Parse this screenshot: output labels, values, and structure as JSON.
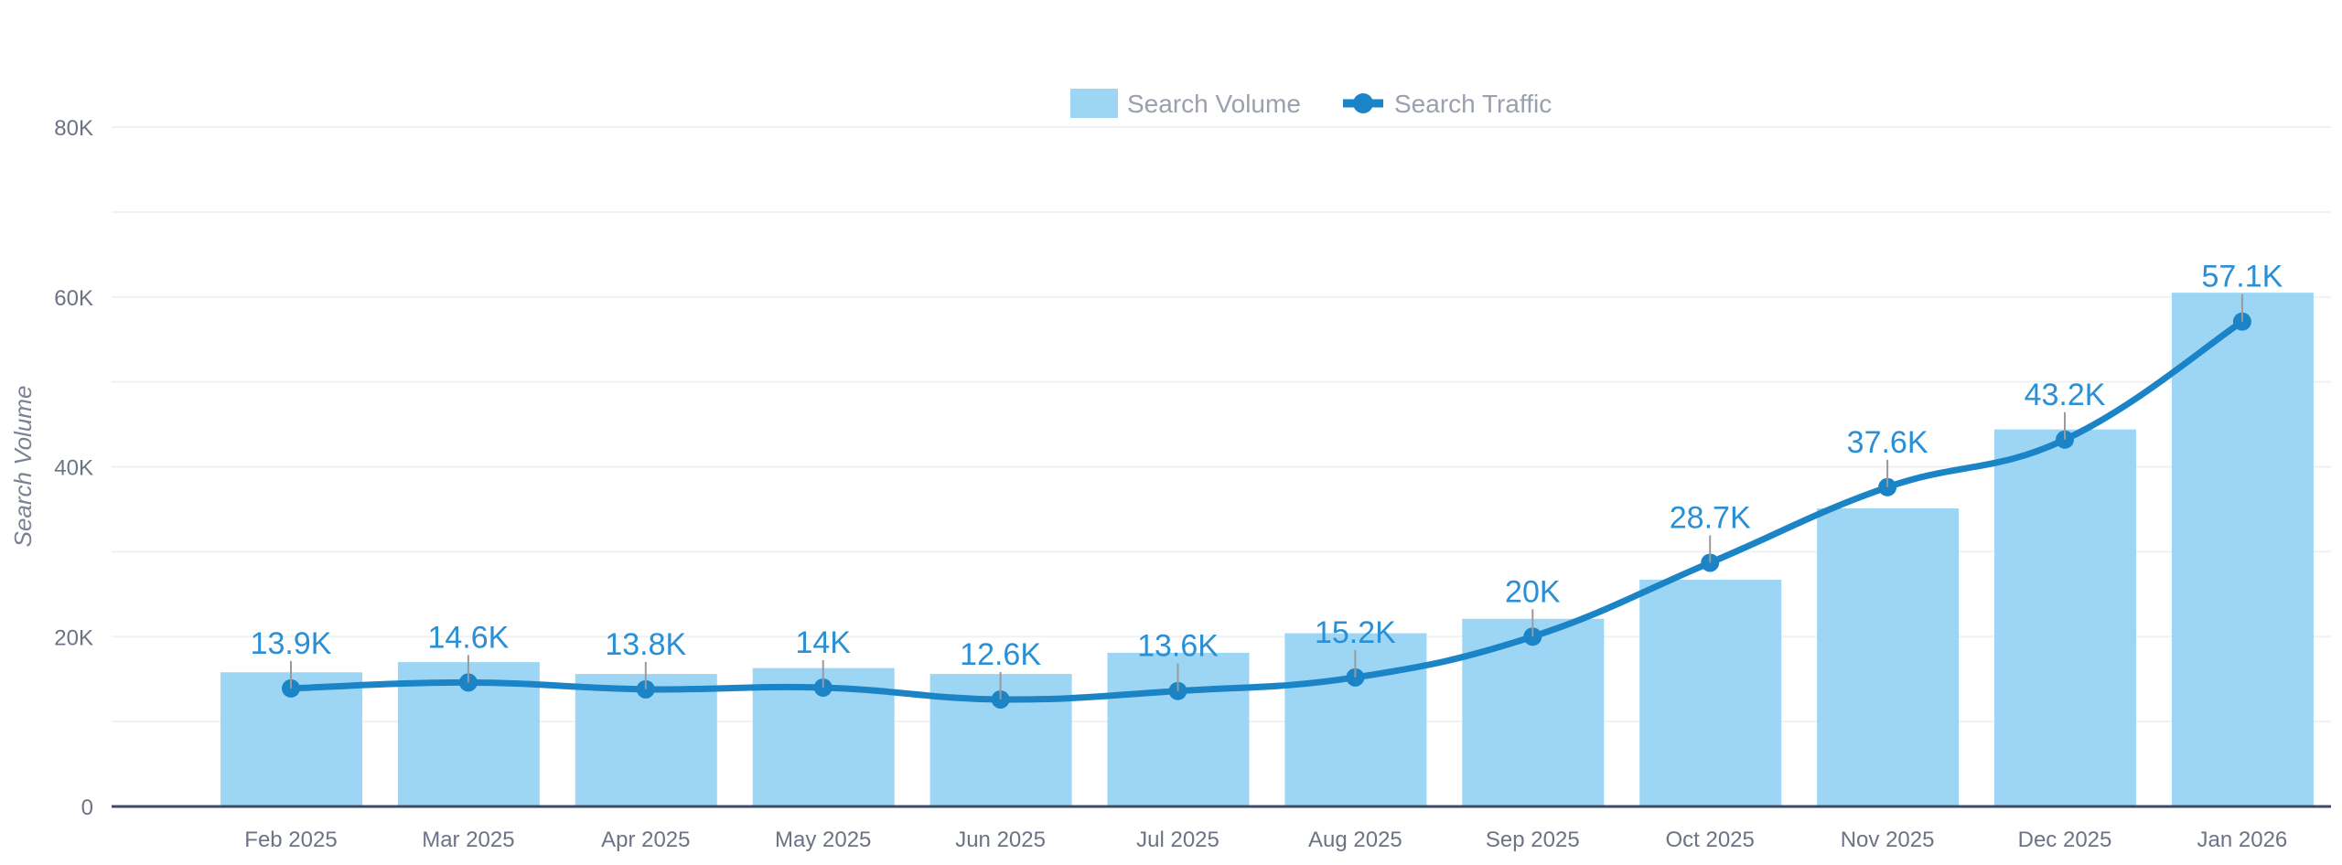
{
  "chart_data": {
    "type": "bar",
    "title": "",
    "xlabel": "",
    "ylabel": "Search Volume",
    "ylim": [
      0,
      80000
    ],
    "yticks": [
      0,
      20000,
      40000,
      60000,
      80000
    ],
    "ytick_labels": [
      "0",
      "20K",
      "40K",
      "60K",
      "80K"
    ],
    "grid": true,
    "legend_position": "top-center",
    "categories": [
      "Feb 2025",
      "Mar 2025",
      "Apr 2025",
      "May 2025",
      "Jun 2025",
      "Jul 2025",
      "Aug 2025",
      "Sep 2025",
      "Oct 2025",
      "Nov 2025",
      "Dec 2025",
      "Jan 2026"
    ],
    "series": [
      {
        "name": "Search Volume",
        "type": "bar",
        "color": "#9dd6f5",
        "values": [
          15800,
          17000,
          15600,
          16300,
          15600,
          18100,
          20400,
          22100,
          26700,
          35100,
          44400,
          60500
        ]
      },
      {
        "name": "Search Traffic",
        "type": "line",
        "color": "#1a84c7",
        "values": [
          13900,
          14600,
          13800,
          14000,
          12600,
          13600,
          15200,
          20000,
          28700,
          37600,
          43200,
          57100
        ],
        "labels": [
          "13.9K",
          "14.6K",
          "13.8K",
          "14K",
          "12.6K",
          "13.6K",
          "15.2K",
          "20K",
          "28.7K",
          "37.6K",
          "43.2K",
          "57.1K"
        ]
      }
    ]
  }
}
